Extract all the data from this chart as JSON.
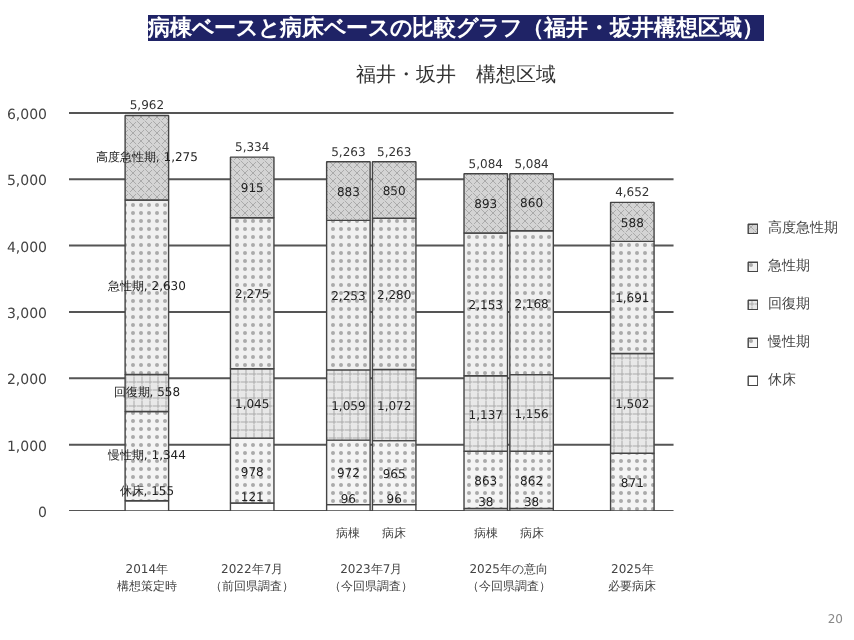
{
  "chart_data": {
    "type": "bar",
    "title": "病棟ベースと病床ベースの比較グラフ（福井・坂井構想区域）",
    "subtitle": "福井・坂井　構想区域",
    "categories": [
      "2014年構想策定時",
      "2022年7月（前回県調査）",
      "病棟",
      "病床",
      "病棟",
      "病床",
      "2025年必要病床"
    ],
    "stacked": true,
    "ylim": [
      0,
      6000
    ],
    "yticks": [
      {
        "value": 0,
        "label": "0"
      },
      {
        "value": 1000,
        "label": "1,000"
      },
      {
        "value": 2000,
        "label": "2,000"
      },
      {
        "value": 3000,
        "label": "3,000"
      },
      {
        "value": 4000,
        "label": "4,000"
      },
      {
        "value": 5000,
        "label": "5,000"
      },
      {
        "value": 6000,
        "label": "6,000"
      }
    ],
    "grid": "y",
    "legend": "right",
    "series": [
      {
        "name": "休床",
        "color": "#ffffff",
        "values": [
          155,
          121,
          96,
          96,
          38,
          38,
          null
        ],
        "value_labels": [
          "休床, 155",
          "121",
          "96",
          "96",
          "38",
          "38",
          null
        ]
      },
      {
        "name": "慢性期",
        "color": "#f4f4f4",
        "values": [
          1344,
          978,
          972,
          965,
          863,
          862,
          871
        ],
        "value_labels": [
          "慢性期, 1,344",
          "978",
          "972",
          "965",
          "863",
          "862",
          "871"
        ]
      },
      {
        "name": "回復期",
        "color": "#e8e8e8",
        "values": [
          558,
          1045,
          1059,
          1072,
          1137,
          1156,
          1502
        ],
        "value_labels": [
          "回復期, 558",
          "1,045",
          "1,059",
          "1,072",
          "1,137",
          "1,156",
          "1,502"
        ]
      },
      {
        "name": "急性期",
        "color": "#f0f0f0",
        "values": [
          2630,
          2275,
          2253,
          2280,
          2153,
          2168,
          1691
        ],
        "value_labels": [
          "急性期, 2,630",
          "2,275",
          "2,253",
          "2,280",
          "2,153",
          "2,168",
          "1,691"
        ]
      },
      {
        "name": "高度急性期",
        "color": "#d4d4d4",
        "values": [
          1275,
          915,
          883,
          850,
          893,
          860,
          588
        ],
        "value_labels": [
          "高度急性期, 1,275",
          "915",
          "883",
          "850",
          "893",
          "860",
          "588"
        ]
      }
    ],
    "totals": [
      "5,962",
      "5,334",
      "5,263",
      "5,263",
      "5,084",
      "5,084",
      "4,652"
    ],
    "annotations": [
      "2023年7月（今回県調査）",
      "2025年の意向（今回県調査）",
      "20"
    ]
  }
}
